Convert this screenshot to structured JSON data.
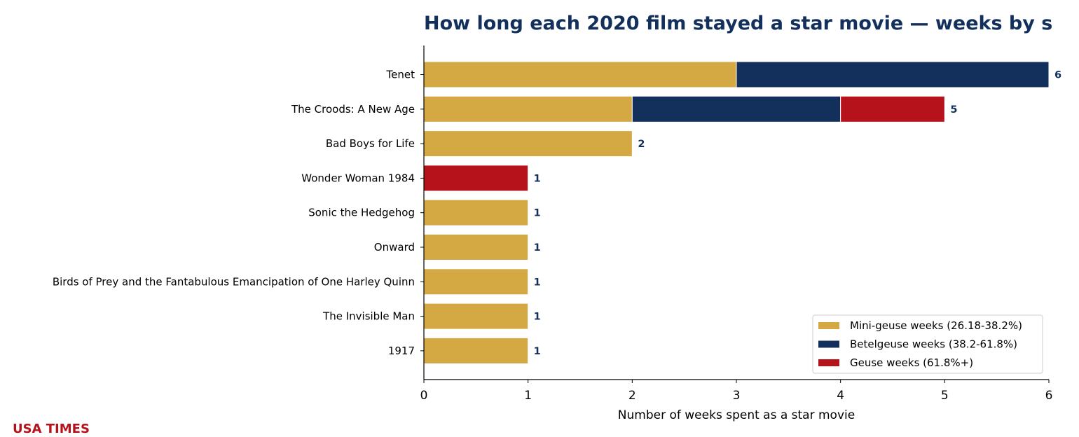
{
  "brand": {
    "name": "USA TIMES",
    "color": "#b5121b"
  },
  "chart_data": {
    "type": "bar",
    "orientation": "horizontal",
    "stacked": true,
    "title": "How long each 2020 film stayed a star movie — weeks by s",
    "title_color": "#13305c",
    "xlabel": "Number of weeks spent as a star movie",
    "ylabel": "",
    "xlim": [
      0,
      6
    ],
    "xticks": [
      0,
      1,
      2,
      3,
      4,
      5,
      6
    ],
    "grid": false,
    "legend_position": "lower-right",
    "categories": [
      "Tenet",
      "The Croods: A New Age",
      "Bad Boys for Life",
      "Wonder Woman 1984",
      "Sonic the Hedgehog",
      "Onward",
      "Birds of Prey and the Fantabulous Emancipation of One Harley Quinn",
      "The Invisible Man",
      "1917"
    ],
    "series": [
      {
        "name": "Mini-geuse weeks (26.18-38.2%)",
        "color": "#d4a944",
        "values": [
          3,
          2,
          2,
          0,
          1,
          1,
          1,
          1,
          1
        ]
      },
      {
        "name": "Betelgeuse weeks (38.2-61.8%)",
        "color": "#13305c",
        "values": [
          3,
          2,
          0,
          0,
          0,
          0,
          0,
          0,
          0
        ]
      },
      {
        "name": "Geuse weeks (61.8%+)",
        "color": "#b5121b",
        "values": [
          0,
          1,
          0,
          1,
          0,
          0,
          0,
          0,
          0
        ]
      }
    ],
    "totals": [
      6,
      5,
      2,
      1,
      1,
      1,
      1,
      1,
      1
    ],
    "value_label_color": "#13305c"
  }
}
